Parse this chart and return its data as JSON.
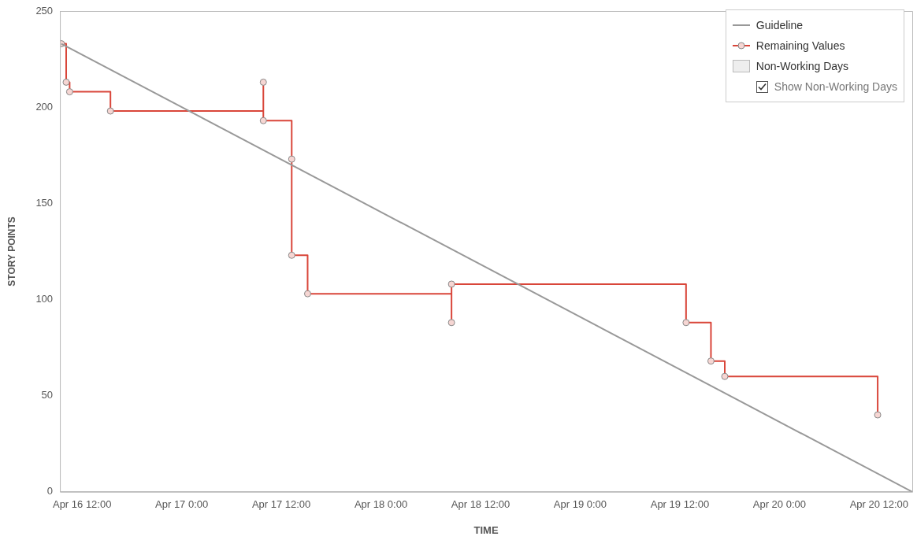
{
  "chart_data": {
    "type": "step",
    "xlabel": "TIME",
    "ylabel": "STORY POINTS",
    "xlim": [
      "--04-16T09:20",
      "--04-20T16:00"
    ],
    "xticks": [
      {
        "value": "--04-16T12:00",
        "label": "Apr 16 12:00"
      },
      {
        "value": "--04-17T00:00",
        "label": "Apr 17 0:00"
      },
      {
        "value": "--04-17T12:00",
        "label": "Apr 17 12:00"
      },
      {
        "value": "--04-18T00:00",
        "label": "Apr 18 0:00"
      },
      {
        "value": "--04-18T12:00",
        "label": "Apr 18 12:00"
      },
      {
        "value": "--04-19T00:00",
        "label": "Apr 19 0:00"
      },
      {
        "value": "--04-19T12:00",
        "label": "Apr 19 12:00"
      },
      {
        "value": "--04-20T00:00",
        "label": "Apr 20 0:00"
      },
      {
        "value": "--04-20T12:00",
        "label": "Apr 20 12:00"
      }
    ],
    "ylim": [
      0,
      250
    ],
    "yticks": [
      0,
      50,
      100,
      150,
      200,
      250
    ],
    "grid": false,
    "legend": "top right",
    "series": [
      {
        "name": "Guideline",
        "type": "line",
        "color": "#999999",
        "x": [
          "--04-16T09:30",
          "--04-20T16:00"
        ],
        "values": [
          233,
          0
        ]
      },
      {
        "name": "Remaining Values",
        "type": "step",
        "color": "#d9463a",
        "marker": "circle",
        "x": [
          "--04-16T09:30",
          "--04-16T10:05",
          "--04-16T10:30",
          "--04-16T15:25",
          "--04-17T09:50",
          "--04-17T09:50",
          "--04-17T13:15",
          "--04-17T13:15",
          "--04-17T15:10",
          "--04-18T08:30",
          "--04-18T08:30",
          "--04-19T12:45",
          "--04-19T15:45",
          "--04-19T17:25",
          "--04-20T11:50"
        ],
        "values": [
          233,
          213,
          208,
          198,
          213,
          193,
          173,
          123,
          103,
          88,
          108,
          88,
          68,
          60,
          40
        ]
      },
      {
        "name": "Non-Working Days",
        "type": "area",
        "color": "#eeeeee",
        "marker": "none"
      }
    ],
    "annotations": [
      "Show Non-Working Days"
    ]
  }
}
